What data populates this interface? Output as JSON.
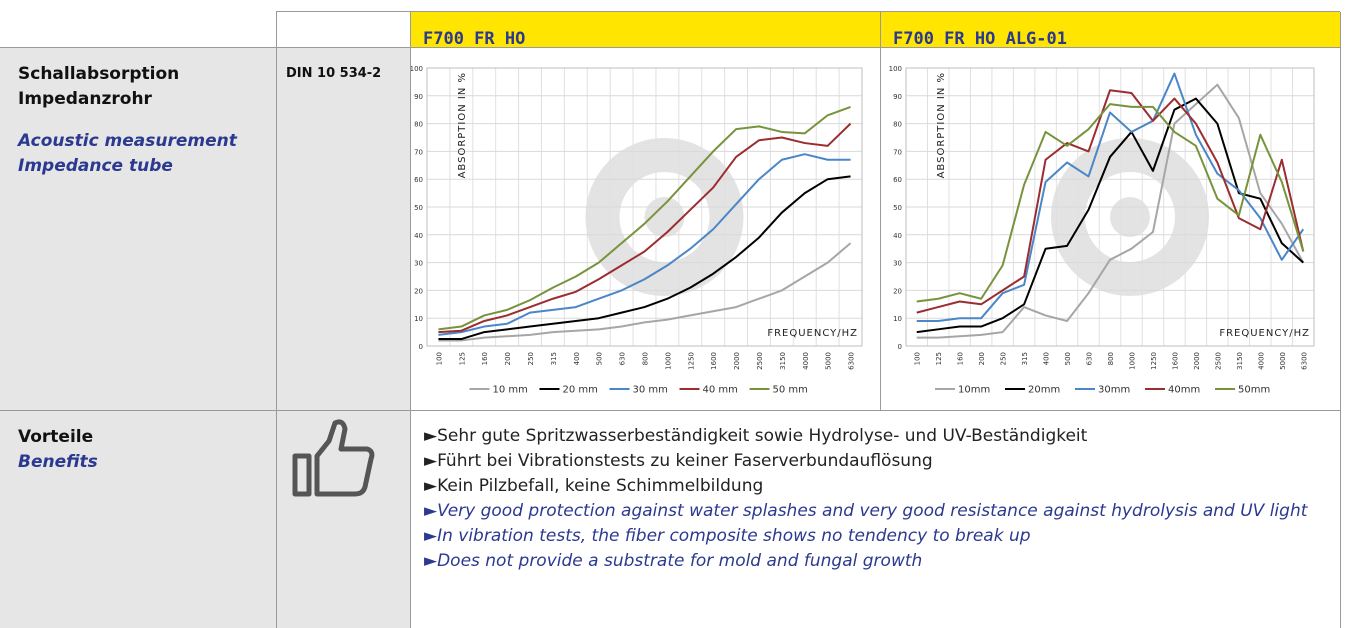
{
  "table": {
    "header": [
      "F700 FR HO",
      "F700 FR HO ALG-01"
    ],
    "rows": [
      {
        "label": [
          "Schallabsorption",
          "Impedanzrohr"
        ],
        "label_en": [
          "Acoustic measurement",
          "Impedance tube"
        ],
        "standard": "DIN 10 534-2"
      },
      {
        "label": [
          "Vorteile"
        ],
        "label_en": [
          "Benefits"
        ],
        "items": [
          "►Sehr gute Spritzwasserbeständigkeit sowie Hydrolyse- und UV-Beständigkeit",
          "►Führt bei Vibrationstests zu keiner Faserverbundauflösung",
          "►Kein Pilzbefall, keine Schimmelbildung"
        ],
        "items_en": [
          "►Very good protection against water splashes and very good resistance against hydrolysis and UV light",
          "►In vibration tests, the fiber composite shows no tendency to break up",
          "►Does not provide a substrate for mold and fungal growth"
        ]
      }
    ]
  },
  "chart_data": [
    {
      "type": "line",
      "ylabel": "ABSORPTION IN %",
      "xlabel": "FREQUENCY/HZ",
      "categories": [
        "100",
        "125",
        "160",
        "200",
        "250",
        "315",
        "400",
        "500",
        "630",
        "800",
        "1000",
        "1250",
        "1600",
        "2000",
        "2500",
        "3150",
        "4000",
        "5000",
        "6300"
      ],
      "ylim": [
        0,
        100
      ],
      "yticks": [
        0,
        10,
        20,
        30,
        40,
        50,
        60,
        70,
        80,
        90,
        100
      ],
      "grid": true,
      "legend": "bottom",
      "series": [
        {
          "name": "10 mm",
          "color": "#a6a6a6",
          "values": [
            2,
            2,
            3,
            3.5,
            4,
            5,
            5.5,
            6,
            7,
            8.5,
            9.5,
            11,
            12.5,
            14,
            17,
            20,
            25,
            30,
            37
          ]
        },
        {
          "name": "20 mm",
          "color": "#000000",
          "values": [
            2.5,
            2.5,
            5,
            6,
            7,
            8,
            9,
            10,
            12,
            14,
            17,
            21,
            26,
            32,
            39,
            48,
            55,
            60,
            61
          ]
        },
        {
          "name": "30 mm",
          "color": "#4a86c8",
          "values": [
            4,
            5,
            7,
            8,
            12,
            13,
            14,
            17,
            20,
            24,
            29,
            35,
            42,
            51,
            60,
            67,
            69,
            67,
            67
          ]
        },
        {
          "name": "40 mm",
          "color": "#9b2d30",
          "values": [
            5,
            5.5,
            9,
            11,
            14,
            17,
            19.5,
            24,
            29,
            34,
            41,
            49,
            57,
            68,
            74,
            75,
            73,
            72,
            80
          ]
        },
        {
          "name": "50 mm",
          "color": "#77933c",
          "values": [
            6,
            7,
            11,
            13,
            16.5,
            21,
            25,
            30,
            37,
            44,
            52,
            61,
            70,
            78,
            79,
            77,
            76.5,
            83,
            86
          ]
        }
      ]
    },
    {
      "type": "line",
      "ylabel": "ABSORPTION IN %",
      "xlabel": "FREQUENCY/HZ",
      "categories": [
        "100",
        "125",
        "160",
        "200",
        "250",
        "315",
        "400",
        "500",
        "630",
        "800",
        "1000",
        "1250",
        "1600",
        "2000",
        "2500",
        "3150",
        "4000",
        "5000",
        "6300"
      ],
      "ylim": [
        0,
        100
      ],
      "yticks": [
        0,
        10,
        20,
        30,
        40,
        50,
        60,
        70,
        80,
        90,
        100
      ],
      "grid": true,
      "legend": "bottom",
      "series": [
        {
          "name": "10mm",
          "color": "#a6a6a6",
          "values": [
            3,
            3,
            3.5,
            4,
            5,
            14,
            11,
            9,
            19,
            31,
            35,
            41,
            80,
            87,
            94,
            82,
            55,
            44,
            30
          ]
        },
        {
          "name": "20mm",
          "color": "#000000",
          "values": [
            5,
            6,
            7,
            7,
            10,
            15,
            35,
            36,
            49,
            68,
            77,
            63,
            85,
            89,
            80,
            55,
            53,
            37,
            30
          ]
        },
        {
          "name": "30mm",
          "color": "#4a86c8",
          "values": [
            9,
            9,
            10,
            10,
            19,
            22,
            59,
            66,
            61,
            84,
            77,
            81,
            98,
            76,
            62,
            56,
            46,
            31,
            42
          ]
        },
        {
          "name": "40mm",
          "color": "#9b2d30",
          "values": [
            12,
            14,
            16,
            15,
            20,
            25,
            67,
            73,
            70,
            92,
            91,
            81,
            89,
            80,
            66,
            46,
            42,
            67,
            34
          ]
        },
        {
          "name": "50mm",
          "color": "#77933c",
          "values": [
            16,
            17,
            19,
            17,
            29,
            58,
            77,
            72,
            78,
            87,
            86,
            86,
            77,
            72,
            53,
            47,
            76,
            59,
            34
          ]
        }
      ]
    }
  ]
}
